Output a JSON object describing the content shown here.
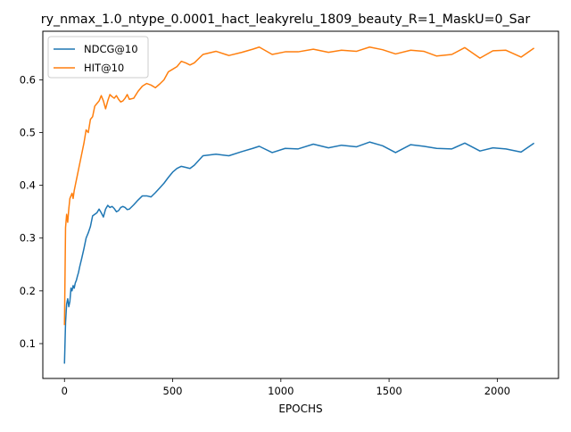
{
  "chart_data": {
    "type": "line",
    "title": "ry_nmax_1.0_ntype_0.0001_hact_leakyrelu_1809_beauty_R=1_MaskU=0_Sar",
    "xlabel": "EPOCHS",
    "ylabel": "",
    "xlim": [
      -100,
      2283
    ],
    "ylim": [
      0.034,
      0.692
    ],
    "xticks": [
      0,
      500,
      1000,
      1500,
      2000
    ],
    "yticks": [
      0.1,
      0.2,
      0.3,
      0.4,
      0.5,
      0.6
    ],
    "grid": false,
    "legend_position": "upper-left",
    "series": [
      {
        "name": "NDCG@10",
        "color": "#1f77b4",
        "x": [
          0,
          5,
          10,
          15,
          20,
          25,
          30,
          35,
          40,
          45,
          50,
          55,
          60,
          65,
          70,
          80,
          90,
          100,
          110,
          120,
          130,
          140,
          150,
          160,
          170,
          180,
          190,
          200,
          210,
          220,
          230,
          240,
          250,
          260,
          270,
          280,
          290,
          300,
          320,
          340,
          360,
          380,
          400,
          420,
          440,
          460,
          480,
          500,
          520,
          540,
          560,
          580,
          600,
          640,
          700,
          760,
          820,
          870,
          900,
          960,
          1020,
          1080,
          1150,
          1220,
          1280,
          1350,
          1410,
          1470,
          1530,
          1600,
          1660,
          1720,
          1790,
          1850,
          1920,
          1980,
          2040,
          2110,
          2170
        ],
        "y": [
          0.062,
          0.14,
          0.175,
          0.185,
          0.17,
          0.18,
          0.205,
          0.2,
          0.21,
          0.205,
          0.215,
          0.22,
          0.228,
          0.235,
          0.245,
          0.262,
          0.28,
          0.3,
          0.31,
          0.322,
          0.342,
          0.345,
          0.348,
          0.355,
          0.348,
          0.34,
          0.355,
          0.362,
          0.358,
          0.36,
          0.356,
          0.35,
          0.352,
          0.358,
          0.36,
          0.358,
          0.354,
          0.355,
          0.363,
          0.372,
          0.38,
          0.38,
          0.378,
          0.386,
          0.395,
          0.404,
          0.415,
          0.425,
          0.432,
          0.436,
          0.434,
          0.432,
          0.438,
          0.456,
          0.459,
          0.456,
          0.464,
          0.47,
          0.474,
          0.462,
          0.47,
          0.469,
          0.478,
          0.471,
          0.476,
          0.473,
          0.482,
          0.475,
          0.462,
          0.477,
          0.474,
          0.47,
          0.469,
          0.48,
          0.465,
          0.471,
          0.469,
          0.463,
          0.48
        ]
      },
      {
        "name": "HIT@10",
        "color": "#ff7f0e",
        "x": [
          0,
          5,
          10,
          15,
          20,
          25,
          30,
          35,
          40,
          45,
          50,
          55,
          60,
          65,
          70,
          80,
          90,
          100,
          110,
          120,
          130,
          140,
          150,
          160,
          170,
          180,
          190,
          200,
          210,
          220,
          230,
          240,
          250,
          260,
          270,
          280,
          290,
          300,
          320,
          340,
          360,
          380,
          400,
          420,
          440,
          460,
          480,
          500,
          520,
          540,
          560,
          580,
          600,
          640,
          700,
          760,
          820,
          870,
          900,
          960,
          1020,
          1080,
          1150,
          1220,
          1280,
          1350,
          1410,
          1470,
          1530,
          1600,
          1660,
          1720,
          1790,
          1850,
          1920,
          1980,
          2040,
          2110,
          2170
        ],
        "y": [
          0.135,
          0.32,
          0.345,
          0.33,
          0.355,
          0.375,
          0.38,
          0.385,
          0.375,
          0.39,
          0.4,
          0.41,
          0.42,
          0.43,
          0.44,
          0.46,
          0.48,
          0.505,
          0.5,
          0.525,
          0.53,
          0.55,
          0.555,
          0.56,
          0.57,
          0.56,
          0.545,
          0.56,
          0.572,
          0.568,
          0.565,
          0.57,
          0.563,
          0.558,
          0.56,
          0.565,
          0.572,
          0.563,
          0.565,
          0.578,
          0.588,
          0.593,
          0.59,
          0.585,
          0.592,
          0.6,
          0.615,
          0.62,
          0.625,
          0.635,
          0.632,
          0.628,
          0.632,
          0.648,
          0.654,
          0.646,
          0.652,
          0.658,
          0.662,
          0.648,
          0.653,
          0.653,
          0.658,
          0.652,
          0.656,
          0.654,
          0.662,
          0.657,
          0.649,
          0.656,
          0.654,
          0.645,
          0.648,
          0.661,
          0.641,
          0.655,
          0.656,
          0.643,
          0.66
        ]
      }
    ]
  }
}
